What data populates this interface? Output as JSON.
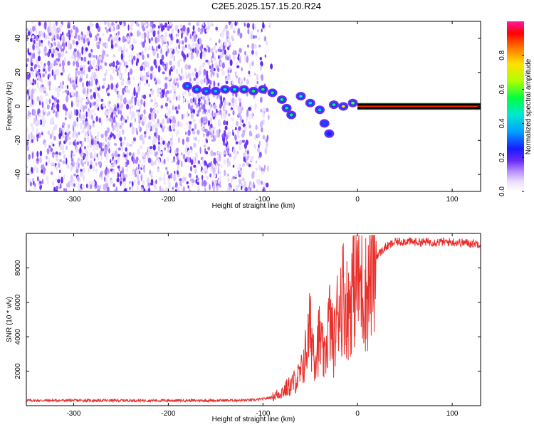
{
  "title": "C2E5.2025.157.15.20.R24",
  "chart_data": [
    {
      "type": "heatmap",
      "xlabel": "Height of straight line (km)",
      "ylabel": "Frequency (Hz)",
      "xlim": [
        -350,
        130
      ],
      "ylim": [
        -50,
        50
      ],
      "x_ticks": [
        -300,
        -200,
        -100,
        0,
        100
      ],
      "y_ticks": [
        -40,
        -20,
        0,
        20,
        40
      ],
      "colorbar": {
        "label": "Normalized spectral amplitude",
        "range": [
          0,
          1
        ],
        "ticks": [
          0.0,
          0.2,
          0.4,
          0.6,
          0.8
        ],
        "tick_labels": [
          "0.0",
          "0.2",
          "0.4",
          "0.6",
          "0.8"
        ]
      },
      "noise_region_x": [
        -350,
        -90
      ],
      "signal_track": [
        {
          "x": -180,
          "y": 12,
          "amp": 0.35
        },
        {
          "x": -170,
          "y": 10,
          "amp": 0.4
        },
        {
          "x": -160,
          "y": 9,
          "amp": 0.38
        },
        {
          "x": -150,
          "y": 9,
          "amp": 0.42
        },
        {
          "x": -140,
          "y": 10,
          "amp": 0.45
        },
        {
          "x": -130,
          "y": 10,
          "amp": 0.5
        },
        {
          "x": -120,
          "y": 10,
          "amp": 0.5
        },
        {
          "x": -110,
          "y": 9,
          "amp": 0.55
        },
        {
          "x": -100,
          "y": 10,
          "amp": 0.55
        },
        {
          "x": -90,
          "y": 8,
          "amp": 0.55
        },
        {
          "x": -80,
          "y": 4,
          "amp": 0.55
        },
        {
          "x": -75,
          "y": -1,
          "amp": 0.55
        },
        {
          "x": -70,
          "y": -5,
          "amp": 0.55
        },
        {
          "x": -60,
          "y": 6,
          "amp": 0.45
        },
        {
          "x": -50,
          "y": 2,
          "amp": 0.45
        },
        {
          "x": -40,
          "y": -2,
          "amp": 0.4
        },
        {
          "x": -35,
          "y": -10,
          "amp": 0.3
        },
        {
          "x": -30,
          "y": -16,
          "amp": 0.25
        },
        {
          "x": -25,
          "y": 1,
          "amp": 0.55
        },
        {
          "x": -15,
          "y": 0,
          "amp": 0.75
        },
        {
          "x": -5,
          "y": 2,
          "amp": 0.6
        }
      ],
      "carrier": {
        "x_start": 0,
        "x_end": 130,
        "y": 0,
        "amp": 0.9,
        "halfwidth_hz": 2
      }
    },
    {
      "type": "line",
      "xlabel": "Height of straight line (km)",
      "ylabel": "SNR (10 * v/v)",
      "xlim": [
        -350,
        130
      ],
      "ylim": [
        0,
        10000
      ],
      "x_ticks": [
        -300,
        -200,
        -100,
        0,
        100
      ],
      "y_ticks": [
        2000,
        4000,
        6000,
        8000
      ],
      "color": "#e8302c",
      "series": [
        {
          "x": [
            -350,
            -300,
            -250,
            -200,
            -150,
            -110,
            -100,
            -90,
            -80,
            -70,
            -60,
            -55,
            -50,
            -45,
            -40,
            -35,
            -30,
            -25,
            -20,
            -15,
            -10,
            -5,
            0,
            5,
            10,
            15,
            20,
            30,
            40,
            50,
            60,
            80,
            100,
            130
          ],
          "values": [
            300,
            300,
            300,
            300,
            300,
            320,
            380,
            500,
            800,
            1200,
            1800,
            3000,
            4500,
            3000,
            4000,
            2500,
            5000,
            3500,
            6000,
            6500,
            5500,
            7000,
            7500,
            6800,
            6500,
            8000,
            8700,
            9200,
            9500,
            9550,
            9500,
            9500,
            9500,
            9400
          ]
        }
      ]
    }
  ]
}
